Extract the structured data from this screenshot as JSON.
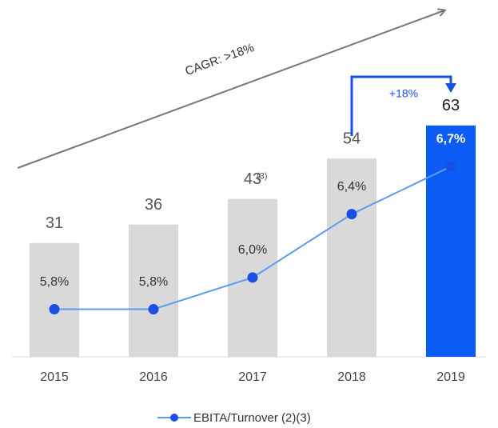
{
  "chart_data": {
    "type": "bar",
    "categories": [
      "2015",
      "2016",
      "2017",
      "2018",
      "2019"
    ],
    "series": [
      {
        "values": [
          31,
          36,
          43,
          54,
          63
        ],
        "colors": [
          "#d9d9d9",
          "#d9d9d9",
          "#d9d9d9",
          "#d9d9d9",
          "#0a5cf5"
        ]
      },
      {
        "name": "EBITA/Turnover (2)(3)",
        "type": "line",
        "axis": "y2",
        "color": "#5b9cf0",
        "marker_color": "#1a4fe6",
        "values": [
          5.8,
          5.8,
          6.0,
          6.4,
          6.7
        ],
        "value_labels": [
          "5,8%",
          "5,8%",
          "6,0%",
          "6,4%",
          "6,7%"
        ]
      }
    ],
    "ylim": [
      0,
      95
    ],
    "y2lim": [
      5.5,
      7.7
    ],
    "annotations": {
      "cagr": "CAGR: >18%",
      "growth": "+18%",
      "note": "(3)"
    }
  }
}
